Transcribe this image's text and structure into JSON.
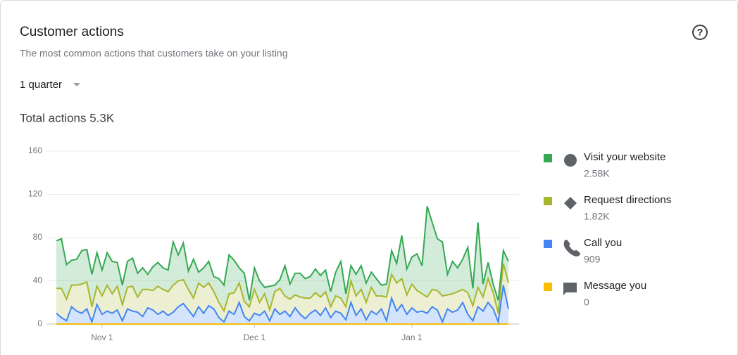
{
  "header": {
    "title": "Customer actions",
    "subtitle": "The most common actions that customers take on your listing",
    "period": "1 quarter",
    "total": "Total actions 5.3K"
  },
  "chart_data": {
    "type": "stacked-area",
    "categories": [
      null,
      null,
      null,
      null,
      null,
      null,
      null,
      null,
      null,
      "Nov 1",
      null,
      null,
      null,
      null,
      null,
      null,
      null,
      null,
      null,
      null,
      null,
      null,
      null,
      null,
      null,
      null,
      null,
      null,
      null,
      null,
      null,
      null,
      null,
      null,
      null,
      null,
      null,
      null,
      null,
      "Dec 1",
      null,
      null,
      null,
      null,
      null,
      null,
      null,
      null,
      null,
      null,
      null,
      null,
      null,
      null,
      null,
      null,
      null,
      null,
      null,
      null,
      null,
      null,
      null,
      null,
      null,
      null,
      null,
      null,
      null,
      null,
      "Jan 1",
      null,
      null,
      null,
      null,
      null,
      null,
      null,
      null,
      null,
      null,
      null,
      null,
      null,
      null,
      null,
      null,
      null,
      null,
      null
    ],
    "ylim": [
      0,
      160
    ],
    "yticks": [
      0,
      40,
      80,
      120,
      160
    ],
    "grid": true,
    "series": [
      {
        "name": "Visit your website",
        "total": "2.58K",
        "color": "#34a853",
        "values": [
          44,
          46,
          32,
          23,
          24,
          31,
          30,
          30,
          31,
          24,
          30,
          30,
          22,
          18,
          24,
          26,
          22,
          20,
          14,
          22,
          22,
          20,
          20,
          40,
          24,
          34,
          17,
          36,
          10,
          18,
          20,
          14,
          22,
          24,
          36,
          30,
          14,
          26,
          6,
          20,
          20,
          6,
          22,
          6,
          8,
          28,
          14,
          20,
          22,
          18,
          20,
          22,
          20,
          20,
          14,
          22,
          34,
          12,
          14,
          20,
          22,
          18,
          14,
          16,
          10,
          12,
          22,
          18,
          40,
          24,
          25,
          34,
          26,
          84,
          62,
          48,
          50,
          19,
          30,
          22,
          28,
          42,
          16,
          60,
          12,
          15,
          8,
          12,
          12,
          20
        ]
      },
      {
        "name": "Request directions",
        "total": "1.82K",
        "color": "#a8b62c",
        "values": [
          23,
          27,
          20,
          20,
          24,
          27,
          25,
          14,
          17,
          17,
          24,
          18,
          22,
          15,
          20,
          23,
          14,
          25,
          17,
          18,
          26,
          20,
          22,
          25,
          24,
          22,
          19,
          17,
          22,
          24,
          21,
          16,
          14,
          10,
          16,
          20,
          18,
          14,
          13,
          22,
          12,
          16,
          10,
          16,
          24,
          14,
          16,
          12,
          16,
          19,
          14,
          16,
          17,
          15,
          10,
          14,
          14,
          12,
          20,
          18,
          18,
          16,
          22,
          17,
          12,
          22,
          22,
          26,
          24,
          18,
          22,
          20,
          16,
          15,
          16,
          18,
          24,
          13,
          17,
          17,
          12,
          20,
          14,
          18,
          13,
          22,
          15,
          8,
          20,
          24
        ]
      },
      {
        "name": "Call you",
        "total": "909",
        "color": "#4285f4",
        "values": [
          10,
          6,
          3,
          16,
          12,
          10,
          14,
          2,
          18,
          9,
          12,
          10,
          13,
          3,
          14,
          12,
          11,
          7,
          15,
          13,
          9,
          12,
          8,
          11,
          16,
          19,
          13,
          7,
          16,
          10,
          17,
          14,
          6,
          2,
          12,
          9,
          20,
          7,
          3,
          10,
          8,
          12,
          3,
          14,
          9,
          12,
          7,
          15,
          9,
          5,
          10,
          13,
          8,
          15,
          6,
          12,
          10,
          4,
          20,
          8,
          14,
          4,
          12,
          9,
          14,
          3,
          24,
          12,
          18,
          9,
          15,
          11,
          12,
          10,
          16,
          13,
          2,
          14,
          11,
          13,
          20,
          9,
          3,
          16,
          12,
          20,
          14,
          2,
          36,
          14
        ]
      },
      {
        "name": "Message you",
        "total": "0",
        "color": "#fbbc04",
        "values": [
          0,
          0,
          0,
          0,
          0,
          0,
          0,
          0,
          0,
          0,
          0,
          0,
          0,
          0,
          0,
          0,
          0,
          0,
          0,
          0,
          0,
          0,
          0,
          0,
          0,
          0,
          0,
          0,
          0,
          0,
          0,
          0,
          0,
          0,
          0,
          0,
          0,
          0,
          0,
          0,
          0,
          0,
          0,
          0,
          0,
          0,
          0,
          0,
          0,
          0,
          0,
          0,
          0,
          0,
          0,
          0,
          0,
          0,
          0,
          0,
          0,
          0,
          0,
          0,
          0,
          0,
          0,
          0,
          0,
          0,
          0,
          0,
          0,
          0,
          0,
          0,
          0,
          0,
          0,
          0,
          0,
          0,
          0,
          0,
          0,
          0,
          0,
          0,
          0,
          0
        ]
      }
    ]
  }
}
